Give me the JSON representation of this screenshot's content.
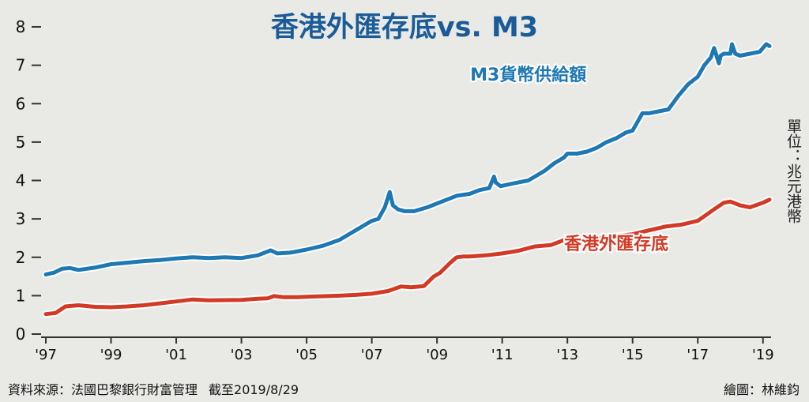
{
  "chart_data": {
    "type": "line",
    "title": "香港外匯存底vs. M3",
    "unit": "單位：兆元港幣",
    "xlabel": "",
    "ylabel": "",
    "x_tick_labels": [
      "'97",
      "'99",
      "'01",
      "'03",
      "'05",
      "'07",
      "'09",
      "'11",
      "'13",
      "'15",
      "'17",
      "'19"
    ],
    "x_tick_years": [
      1997,
      1999,
      2001,
      2003,
      2005,
      2007,
      2009,
      2011,
      2013,
      2015,
      2017,
      2019
    ],
    "xlim": [
      1997,
      2019.2
    ],
    "y_ticks": [
      0,
      1,
      2,
      3,
      4,
      5,
      6,
      7,
      8
    ],
    "ylim": [
      0,
      8
    ],
    "grid": false,
    "series": [
      {
        "name": "M3貨幣供給額",
        "color": "#1d78b4",
        "x": [
          1997.0,
          1997.25,
          1997.5,
          1997.75,
          1998.0,
          1998.5,
          1999.0,
          1999.5,
          2000.0,
          2000.5,
          2001.0,
          2001.5,
          2002.0,
          2002.5,
          2003.0,
          2003.5,
          2003.9,
          2004.1,
          2004.5,
          2005.0,
          2005.5,
          2006.0,
          2006.3,
          2006.6,
          2006.8,
          2007.0,
          2007.2,
          2007.4,
          2007.55,
          2007.65,
          2007.8,
          2008.0,
          2008.3,
          2008.7,
          2009.0,
          2009.3,
          2009.6,
          2010.0,
          2010.3,
          2010.6,
          2010.75,
          2010.8,
          2010.95,
          2011.2,
          2011.5,
          2011.8,
          2012.0,
          2012.3,
          2012.6,
          2012.9,
          2013.0,
          2013.3,
          2013.6,
          2013.9,
          2014.2,
          2014.5,
          2014.8,
          2015.0,
          2015.2,
          2015.3,
          2015.5,
          2015.8,
          2016.1,
          2016.4,
          2016.7,
          2017.0,
          2017.2,
          2017.4,
          2017.5,
          2017.65,
          2017.7,
          2017.8,
          2018.0,
          2018.05,
          2018.15,
          2018.3,
          2018.6,
          2018.9,
          2019.0,
          2019.1,
          2019.2
        ],
        "values": [
          1.55,
          1.6,
          1.7,
          1.72,
          1.67,
          1.73,
          1.82,
          1.86,
          1.9,
          1.93,
          1.97,
          2.0,
          1.98,
          2.0,
          1.98,
          2.05,
          2.18,
          2.1,
          2.12,
          2.2,
          2.3,
          2.45,
          2.6,
          2.75,
          2.85,
          2.95,
          3.0,
          3.3,
          3.7,
          3.35,
          3.25,
          3.2,
          3.2,
          3.3,
          3.4,
          3.5,
          3.6,
          3.65,
          3.75,
          3.8,
          4.1,
          3.95,
          3.85,
          3.9,
          3.95,
          4.0,
          4.1,
          4.25,
          4.45,
          4.6,
          4.7,
          4.7,
          4.75,
          4.85,
          5.0,
          5.1,
          5.25,
          5.3,
          5.6,
          5.75,
          5.75,
          5.8,
          5.85,
          6.2,
          6.5,
          6.7,
          7.0,
          7.2,
          7.45,
          7.05,
          7.25,
          7.3,
          7.3,
          7.55,
          7.3,
          7.25,
          7.3,
          7.35,
          7.45,
          7.55,
          7.5
        ]
      },
      {
        "name": "香港外匯存底",
        "color": "#d33a25",
        "x": [
          1997.0,
          1997.3,
          1997.6,
          1998.0,
          1998.5,
          1999.0,
          1999.5,
          2000.0,
          2000.5,
          2001.0,
          2001.5,
          2002.0,
          2003.0,
          2003.5,
          2003.8,
          2004.0,
          2004.3,
          2004.7,
          2005.0,
          2006.0,
          2006.5,
          2007.0,
          2007.5,
          2007.9,
          2008.2,
          2008.6,
          2008.9,
          2009.1,
          2009.4,
          2009.6,
          2009.8,
          2010.0,
          2010.5,
          2011.0,
          2011.5,
          2012.0,
          2012.5,
          2012.9,
          2013.0,
          2013.2,
          2013.5,
          2014.0,
          2014.5,
          2015.0,
          2015.5,
          2016.0,
          2016.5,
          2017.0,
          2017.5,
          2017.8,
          2018.0,
          2018.3,
          2018.6,
          2019.0,
          2019.2
        ],
        "values": [
          0.52,
          0.55,
          0.72,
          0.75,
          0.71,
          0.7,
          0.72,
          0.75,
          0.8,
          0.85,
          0.9,
          0.88,
          0.89,
          0.92,
          0.93,
          0.99,
          0.96,
          0.96,
          0.97,
          1.0,
          1.02,
          1.05,
          1.12,
          1.24,
          1.22,
          1.25,
          1.5,
          1.6,
          1.85,
          2.0,
          2.02,
          2.02,
          2.05,
          2.1,
          2.17,
          2.28,
          2.32,
          2.45,
          2.45,
          2.35,
          2.4,
          2.5,
          2.55,
          2.6,
          2.7,
          2.8,
          2.85,
          2.95,
          3.25,
          3.42,
          3.45,
          3.35,
          3.3,
          3.42,
          3.5
        ]
      }
    ],
    "annotations": [
      {
        "text": "M3貨幣供給額",
        "color": "#1d78b4",
        "anchor_x": 2011.8,
        "anchor_y": 6.6
      },
      {
        "text": "香港外匯存底",
        "color": "#d33a25",
        "anchor_x": 2014.5,
        "anchor_y": 2.2
      }
    ],
    "source": "資料來源：法國巴黎銀行財富管理",
    "date_note": "截至2019/8/29",
    "credit": "繪圖：林維鈞"
  }
}
